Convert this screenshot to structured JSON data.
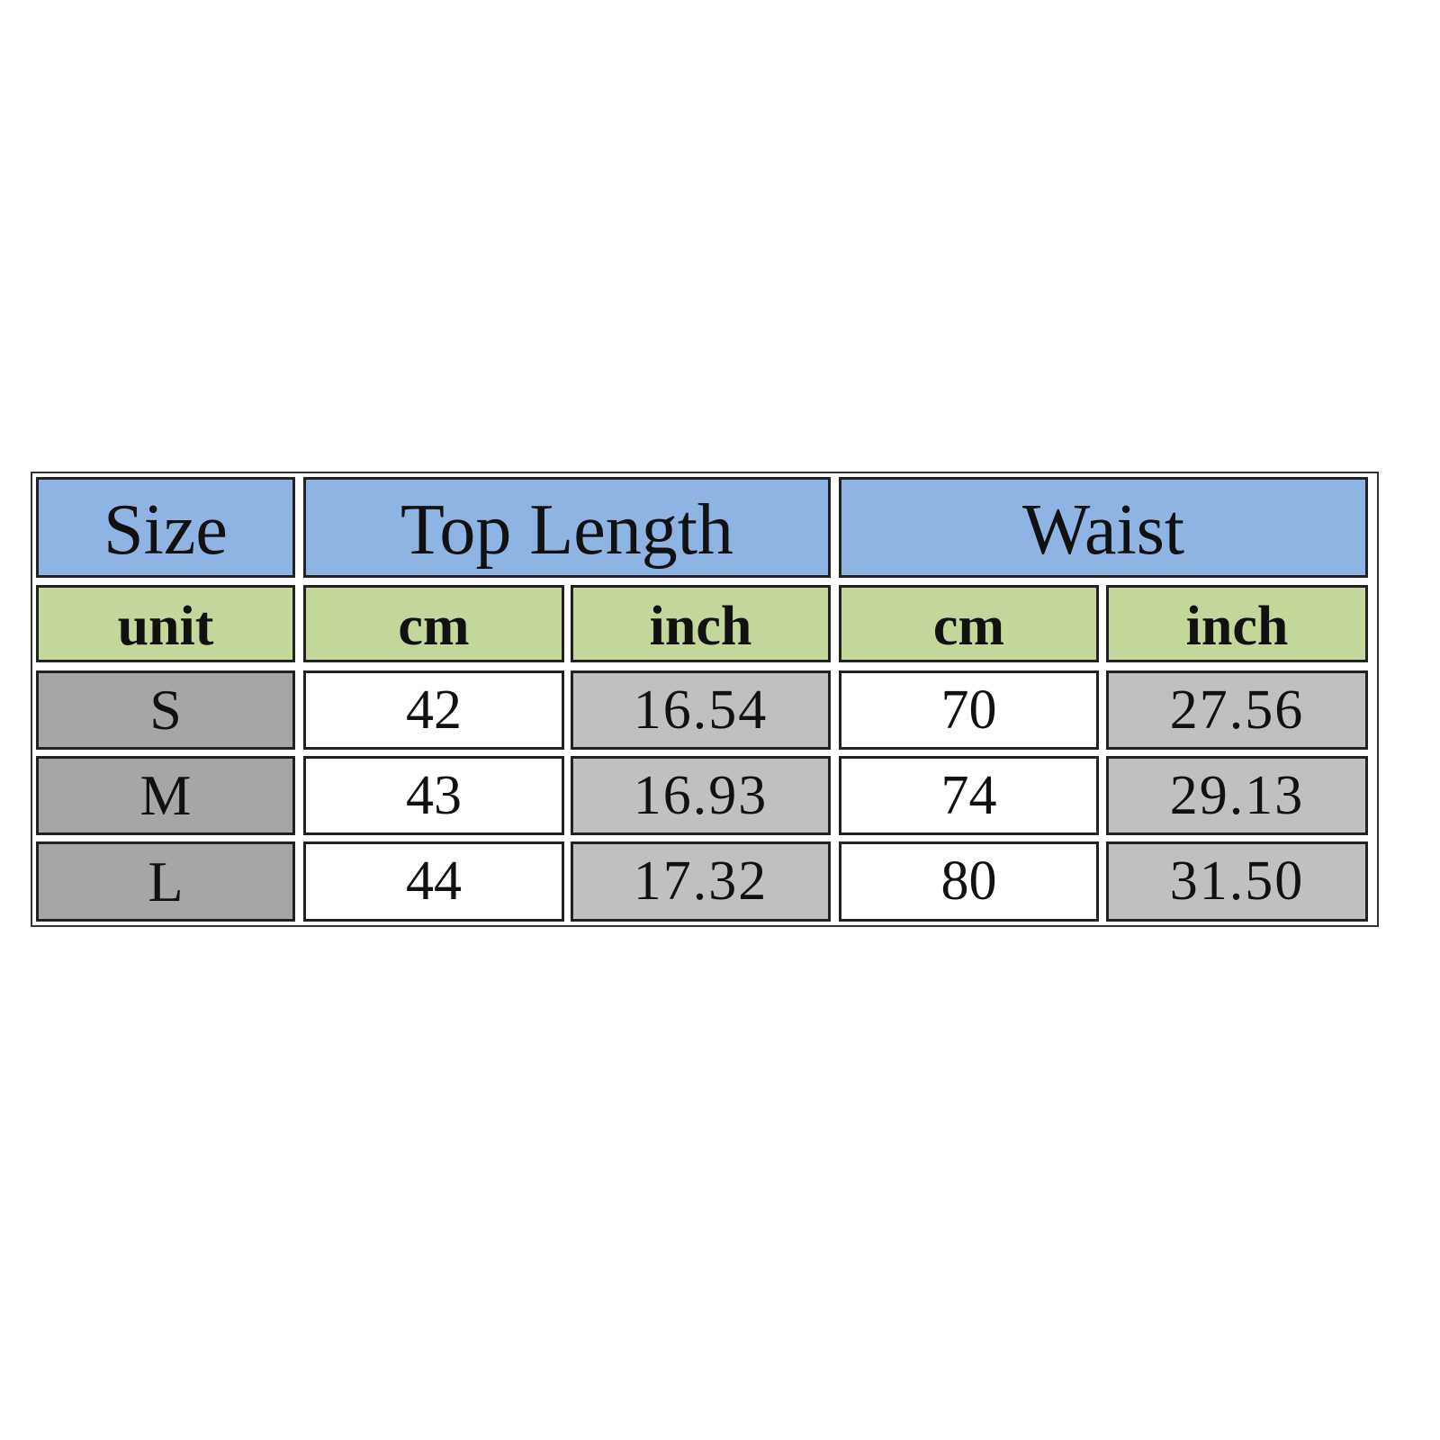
{
  "header": {
    "size": "Size",
    "top_length": "Top Length",
    "waist": "Waist"
  },
  "units": {
    "label": "unit",
    "cm": "cm",
    "inch": "inch"
  },
  "rows": [
    {
      "size": "S",
      "top_cm": "42",
      "top_inch": "16.54",
      "waist_cm": "70",
      "waist_inch": "27.56"
    },
    {
      "size": "M",
      "top_cm": "43",
      "top_inch": "16.93",
      "waist_cm": "74",
      "waist_inch": "29.13"
    },
    {
      "size": "L",
      "top_cm": "44",
      "top_inch": "17.32",
      "waist_cm": "80",
      "waist_inch": "31.50"
    }
  ],
  "colors": {
    "header": "#8db4e2",
    "unit_row": "#c4d79b",
    "size_col": "#a6a6a6",
    "inch_col": "#c0c0c0",
    "cm_col": "#ffffff"
  }
}
